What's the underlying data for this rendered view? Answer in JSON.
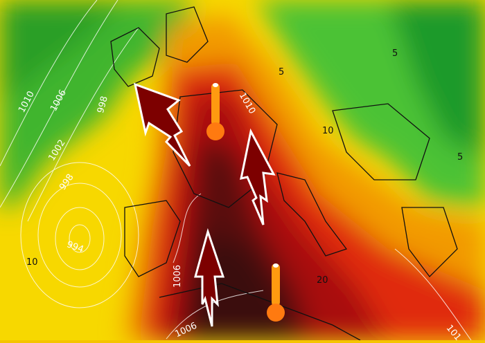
{
  "map": {
    "colors": {
      "cool_green": "#2fa52a",
      "light_green": "#5ccf3a",
      "yellow": "#f7d800",
      "orange": "#f29a00",
      "red": "#e02a10",
      "dark_red": "#7a0a0a",
      "deep_maroon": "#3a0808",
      "arrow_fill": "#7d0000",
      "thermometer": "#ff7a10"
    },
    "isobar_labels": [
      {
        "text": "1010"
      },
      {
        "text": "1006"
      },
      {
        "text": "998"
      },
      {
        "text": "1002"
      },
      {
        "text": "998"
      },
      {
        "text": "994"
      },
      {
        "text": "1010"
      },
      {
        "text": "1006"
      },
      {
        "text": "1006"
      },
      {
        "text": "101"
      }
    ],
    "temperature_labels": [
      {
        "text": "10"
      },
      {
        "text": "10"
      },
      {
        "text": "5"
      },
      {
        "text": "5"
      },
      {
        "text": "5"
      },
      {
        "text": "20"
      }
    ],
    "icons": [
      "warm-air-arrow-icon",
      "thermometer-icon"
    ]
  }
}
